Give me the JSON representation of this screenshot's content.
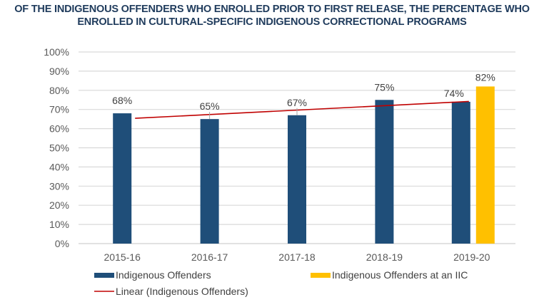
{
  "chart_data": {
    "type": "bar",
    "title_line1": "OF THE INDIGENOUS OFFENDERS WHO ENROLLED PRIOR TO FIRST RELEASE, THE PERCENTAGE WHO",
    "title_line2": "ENROLLED IN CULTURAL-SPECIFIC INDIGENOUS CORRECTIONAL PROGRAMS",
    "xlabel": "",
    "ylabel": "",
    "ylim": [
      0,
      100
    ],
    "y_ticks": [
      "0%",
      "10%",
      "20%",
      "30%",
      "40%",
      "50%",
      "60%",
      "70%",
      "80%",
      "90%",
      "100%"
    ],
    "categories": [
      "2015-16",
      "2016-17",
      "2017-18",
      "2018-19",
      "2019-20"
    ],
    "grid": true,
    "legend_position": "bottom",
    "series": [
      {
        "name": "Indigenous Offenders",
        "color": "#1f4e79",
        "values": [
          68,
          65,
          67,
          75,
          74
        ],
        "labels": [
          "68%",
          "65%",
          "67%",
          "75%",
          "74%"
        ]
      },
      {
        "name": "Indigenous Offenders at an IIC",
        "color": "#ffc000",
        "values": [
          null,
          null,
          null,
          null,
          82
        ],
        "labels": [
          null,
          null,
          null,
          null,
          "82%"
        ]
      }
    ],
    "trendline": {
      "name": "Linear (Indigenous Offenders)",
      "type": "linear",
      "of_series": "Indigenous Offenders",
      "color": "#c00000"
    }
  }
}
